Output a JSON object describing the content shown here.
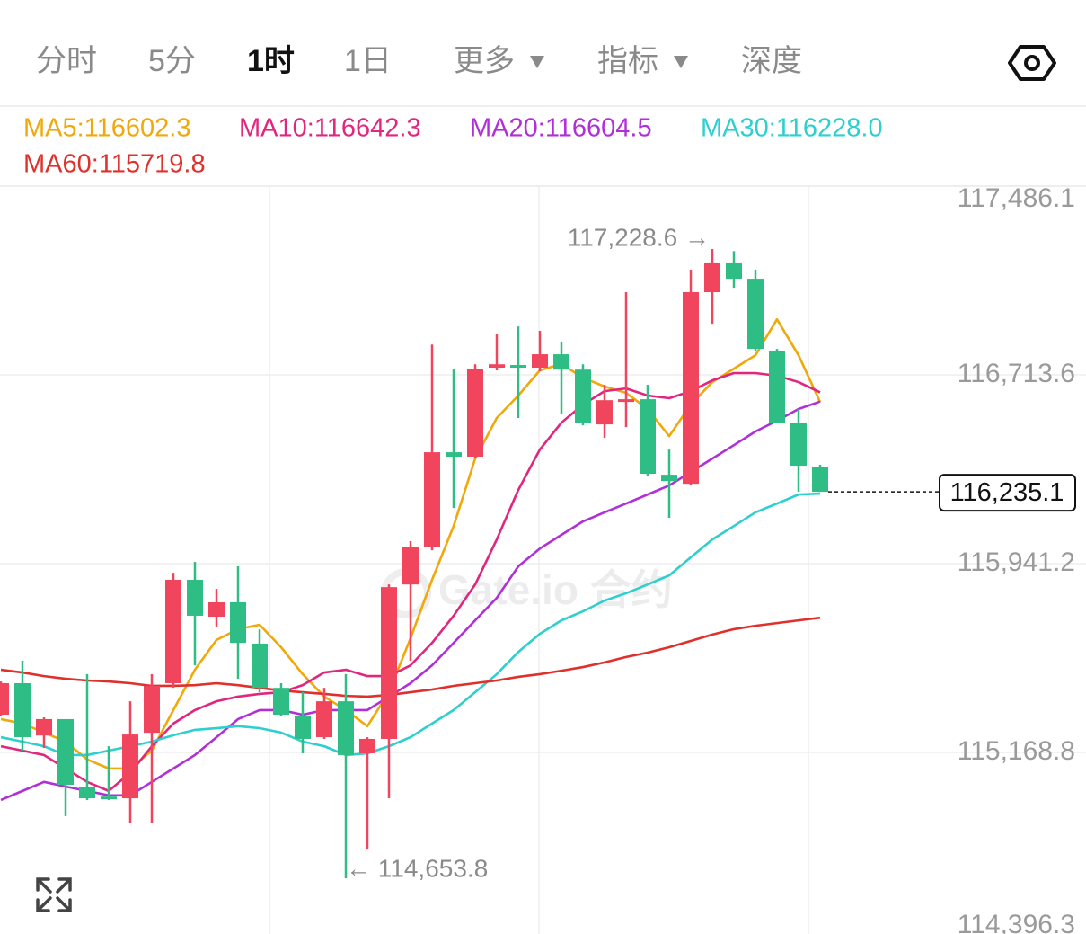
{
  "tabs": [
    "分时",
    "5分",
    "1时",
    "1日",
    "更多",
    "指标",
    "深度"
  ],
  "active_tab": "1时",
  "chart_data": {
    "type": "candlestick",
    "watermark": "Gate.io 合约",
    "ylim": [
      114396.3,
      117486.1
    ],
    "yticks": [
      {
        "value": 117486.1,
        "label": "117,486.1"
      },
      {
        "value": 116713.6,
        "label": "116,713.6"
      },
      {
        "value": 115941.2,
        "label": "115,941.2"
      },
      {
        "value": 115168.8,
        "label": "115,168.8"
      },
      {
        "value": 114396.3,
        "label": "114,396.3"
      }
    ],
    "grid": true,
    "up_color": "#f0455c",
    "down_color": "#2ebd85",
    "open": [
      115323,
      115452,
      115238,
      115305,
      115029,
      114988,
      114981,
      115249,
      115452,
      115875,
      115724,
      115783,
      115614,
      115433,
      115319,
      115231,
      115378,
      115165,
      115224,
      115856,
      116011,
      116397,
      116379,
      116743,
      116754,
      116743,
      116798,
      116735,
      116511,
      116607,
      116614,
      116305,
      116268,
      117052,
      117170,
      117107,
      116813,
      116518,
      116338
    ],
    "high": [
      115459,
      115544,
      115312,
      115305,
      115489,
      115194,
      115378,
      115489,
      115904,
      115948,
      115838,
      115930,
      115672,
      115452,
      115415,
      115433,
      115489,
      115231,
      115856,
      116033,
      116838,
      116739,
      116757,
      116879,
      116912,
      116894,
      116849,
      116757,
      116673,
      117052,
      116673,
      116408,
      117144,
      117228.6,
      117220,
      117144,
      116820,
      116574,
      116346
    ],
    "low": [
      115316,
      115176,
      115187,
      114908,
      114974,
      114974,
      114882,
      114882,
      115433,
      115525,
      115684,
      115470,
      115415,
      115316,
      115165,
      115224,
      114653.8,
      114771,
      114981,
      115544,
      115996,
      116169,
      116371,
      116732,
      116537,
      116728,
      116555,
      116507,
      116456,
      116500,
      116298,
      116129,
      116261,
      116923,
      117070,
      116813,
      116518,
      116235,
      116235.1
    ],
    "close": [
      115452,
      115231,
      115305,
      115036,
      114981,
      114977,
      115242,
      115441,
      115875,
      115728,
      115783,
      115617,
      115433,
      115323,
      115224,
      115378,
      115158,
      115224,
      115845,
      116011,
      116397,
      116379,
      116739,
      116757,
      116746,
      116798,
      116735,
      116518,
      116610,
      116614,
      116309,
      116279,
      117052,
      117170,
      117107,
      116820,
      116518,
      116342,
      116235.1
    ],
    "series": [
      {
        "name": "MA5:116602.3",
        "color": "#f0a80a",
        "values": [
          115305,
          115287,
          115250,
          115213,
          115140,
          115103,
          115103,
          115176,
          115342,
          115507,
          115629,
          115673,
          115691,
          115599,
          115489,
          115397,
          115342,
          115276,
          115415,
          115636,
          115875,
          116095,
          116371,
          116537,
          116629,
          116732,
          116758,
          116702,
          116666,
          116640,
          116574,
          116463,
          116592,
          116684,
          116739,
          116794,
          116941,
          116794,
          116602.3
        ]
      },
      {
        "name": "MA10:116642.3",
        "color": "#e0267f",
        "values": [
          115194,
          115176,
          115158,
          115103,
          115048,
          115011,
          115085,
          115194,
          115287,
          115342,
          115378,
          115397,
          115408,
          115415,
          115444,
          115496,
          115507,
          115481,
          115481,
          115525,
          115617,
          115728,
          115856,
          116040,
          116243,
          116408,
          116518,
          116592,
          116647,
          116658,
          116629,
          116618,
          116647,
          116691,
          116721,
          116721,
          116710,
          116684,
          116642.3
        ]
      },
      {
        "name": "MA20:116604.5",
        "color": "#b02fd8",
        "values": [
          114974,
          115011,
          115048,
          115029,
          115011,
          114993,
          114993,
          115048,
          115103,
          115158,
          115231,
          115305,
          115342,
          115342,
          115323,
          115342,
          115342,
          115342,
          115397,
          115452,
          115525,
          115617,
          115709,
          115801,
          115930,
          116003,
          116059,
          116114,
          116151,
          116187,
          116224,
          116261,
          116316,
          116371,
          116426,
          116482,
          116526,
          116574,
          116604.5
        ]
      },
      {
        "name": "MA30:116228.0",
        "color": "#2dcfcf",
        "values": [
          115231,
          115213,
          115194,
          115158,
          115158,
          115176,
          115194,
          115213,
          115239,
          115261,
          115268,
          115276,
          115268,
          115250,
          115213,
          115194,
          115158,
          115165,
          115194,
          115231,
          115287,
          115342,
          115415,
          115489,
          115580,
          115654,
          115709,
          115746,
          115790,
          115820,
          115856,
          115893,
          115967,
          116040,
          116095,
          116151,
          116187,
          116224,
          116228.0
        ]
      },
      {
        "name": "MA60:115719.8",
        "color": "#e0302c",
        "values": [
          115507,
          115496,
          115481,
          115470,
          115463,
          115459,
          115452,
          115441,
          115441,
          115444,
          115452,
          115444,
          115433,
          115422,
          115415,
          115408,
          115400,
          115397,
          115404,
          115415,
          115426,
          115441,
          115452,
          115463,
          115478,
          115489,
          115503,
          115518,
          115537,
          115559,
          115577,
          115599,
          115625,
          115651,
          115673,
          115687,
          115698,
          115709,
          115719.8
        ]
      }
    ],
    "annotations": [
      {
        "value": 117228.6,
        "label": "117,228.6 →"
      },
      {
        "value": 114653.8,
        "label": "← 114,653.8"
      }
    ],
    "current_price": {
      "value": 116235.1,
      "label": "116,235.1"
    }
  }
}
